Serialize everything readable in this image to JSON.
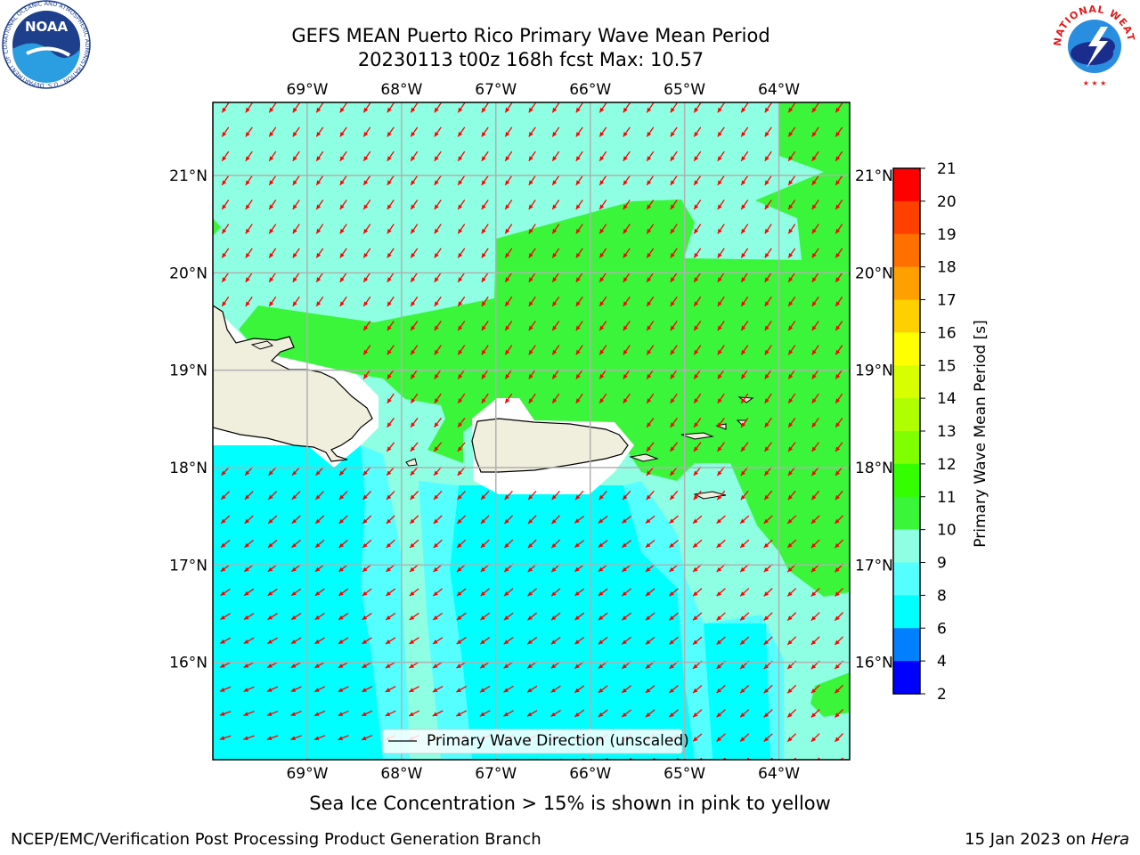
{
  "header": {
    "title_line1": "GEFS MEAN Puerto Rico Primary Wave Mean Period",
    "title_line2": "20230113 t00z 168h fcst   Max: 10.57"
  },
  "logos": {
    "left": "noaa-logo",
    "left_text": "NOAA",
    "left_ring_text": "NATIONAL OCEANIC AND ATMOSPHERIC ADMINISTRATION · U.S. DEPARTMENT OF COMMERCE",
    "right": "nws-logo",
    "right_ring_text": "NATIONAL WEATHER SERVICE"
  },
  "map": {
    "lon_labels": [
      "69°W",
      "68°W",
      "67°W",
      "66°W",
      "65°W",
      "64°W"
    ],
    "lat_labels": [
      "21°N",
      "20°N",
      "19°N",
      "18°N",
      "17°N",
      "16°N"
    ],
    "lon_range": [
      -70.0,
      -63.25
    ],
    "lat_range": [
      15.0,
      21.75
    ],
    "legend_label": "Primary Wave Direction (unscaled)",
    "colors": {
      "land": "#f0eedc",
      "p6_8": "#00ffff",
      "p8_9": "#55ffff",
      "p9_10": "#8fffe3",
      "p10_11": "#3bf53b",
      "arrow": "#ff0000",
      "grid": "#b0b0b0"
    }
  },
  "colorbar": {
    "label": "Primary Wave Mean Period [s]",
    "ticks": [
      "2",
      "4",
      "6",
      "8",
      "9",
      "10",
      "11",
      "12",
      "13",
      "14",
      "15",
      "16",
      "17",
      "18",
      "19",
      "20",
      "21"
    ],
    "colors": [
      "#0000ff",
      "#0080ff",
      "#00ffff",
      "#55ffff",
      "#8fffe3",
      "#3bf53b",
      "#33ff00",
      "#80ff00",
      "#b0ff00",
      "#d8ff00",
      "#ffff00",
      "#ffd000",
      "#ffa000",
      "#ff7000",
      "#ff4000",
      "#ff0000"
    ]
  },
  "notes": {
    "ice": "Sea Ice Concentration > 15% is shown in pink to yellow"
  },
  "footer": {
    "left": "NCEP/EMC/Verification Post Processing Product Generation Branch",
    "right_date": "15 Jan 2023 on",
    "right_host": "Hera"
  }
}
